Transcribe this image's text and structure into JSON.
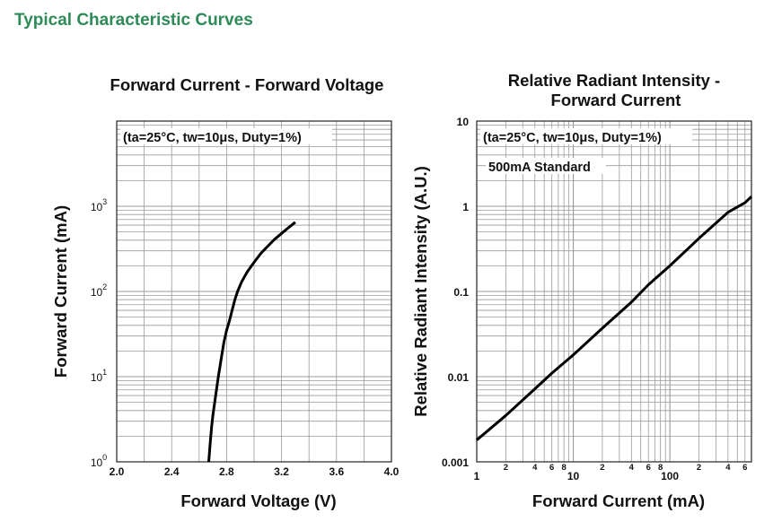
{
  "page_heading": "Typical Characteristic Curves",
  "colors": {
    "heading": "#2e8b57",
    "curve": "#000000",
    "grid": "#9a9a9a"
  },
  "chart_data": [
    {
      "type": "line",
      "title": "Forward Current - Forward Voltage",
      "annotation": "(ta=25°C, tw=10μs, Duty=1%)",
      "xlabel": "Forward Voltage (V)",
      "ylabel": "Forward Current (mA)",
      "xscale": "linear",
      "yscale": "log",
      "xlim": [
        2.0,
        4.0
      ],
      "ylim": [
        1,
        10000
      ],
      "grid": true,
      "x_tick_labels": [
        "2.0",
        "2.4",
        "2.8",
        "3.2",
        "3.6",
        "4.0"
      ],
      "y_tick_labels": [
        {
          "base": "10",
          "exp": "0"
        },
        {
          "base": "10",
          "exp": "1"
        },
        {
          "base": "10",
          "exp": "2"
        },
        {
          "base": "10",
          "exp": "3"
        }
      ],
      "series": [
        {
          "x": [
            2.67,
            2.68,
            2.69,
            2.7,
            2.72,
            2.74,
            2.76,
            2.78,
            2.8,
            2.82,
            2.84,
            2.86,
            2.88,
            2.91,
            2.95,
            3.0,
            3.05,
            3.1,
            3.15,
            3.2,
            3.25,
            3.3
          ],
          "y": [
            1.0,
            1.6,
            2.5,
            3.5,
            6.0,
            10,
            16,
            25,
            35,
            45,
            60,
            80,
            100,
            130,
            170,
            220,
            280,
            340,
            410,
            480,
            560,
            650
          ]
        }
      ]
    },
    {
      "type": "line",
      "title": "Relative Radiant Intensity - Forward Current",
      "title_lines": [
        "Relative Radiant Intensity -",
        "Forward Current"
      ],
      "annotation": "(ta=25°C, tw=10μs, Duty=1%)",
      "annotation2": "500mA Standard",
      "xlabel": "Forward Current (mA)",
      "ylabel": "Relative Radiant Intensity (A.U.)",
      "xscale": "log",
      "yscale": "log",
      "xlim": [
        1,
        700
      ],
      "ylim": [
        0.001,
        10
      ],
      "grid": true,
      "x_tick_labels_major": [
        "1",
        "10",
        "100"
      ],
      "x_tick_labels_minor": [
        "2",
        "4",
        "6",
        "8",
        "2",
        "4",
        "6",
        "8",
        "2",
        "4",
        "6"
      ],
      "y_tick_labels": [
        "0.001",
        "0.01",
        "0.1",
        "1",
        "10"
      ],
      "series": [
        {
          "x": [
            1,
            2,
            4,
            6,
            10,
            20,
            40,
            60,
            100,
            200,
            400,
            600,
            700
          ],
          "y": [
            0.0018,
            0.0035,
            0.0072,
            0.011,
            0.018,
            0.037,
            0.075,
            0.12,
            0.2,
            0.42,
            0.85,
            1.1,
            1.3
          ]
        }
      ]
    }
  ]
}
